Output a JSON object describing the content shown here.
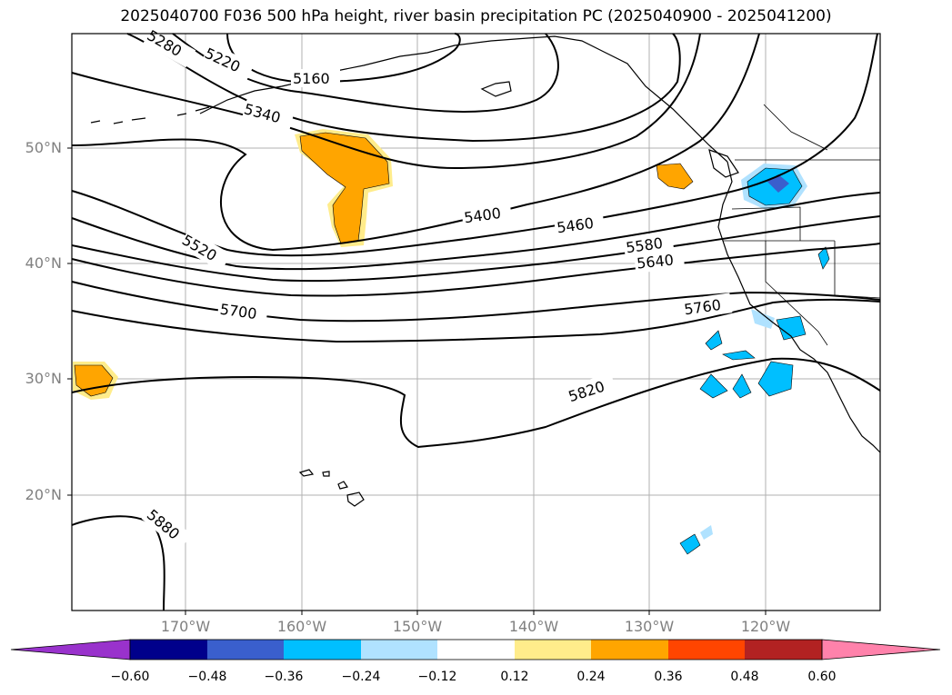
{
  "title": "2025040700 F036 500 hPa height, river basin precipitation PC (2025040900 - 2025041200)",
  "map": {
    "lon_range": [
      -180,
      -110
    ],
    "lat_range": [
      10,
      60
    ],
    "lat_ticks": [
      {
        "value": 50,
        "label": "50°N"
      },
      {
        "value": 40,
        "label": "40°N"
      },
      {
        "value": 30,
        "label": "30°N"
      },
      {
        "value": 20,
        "label": "20°N"
      }
    ],
    "lon_ticks": [
      {
        "value": -170,
        "label": "170°W"
      },
      {
        "value": -160,
        "label": "160°W"
      },
      {
        "value": -150,
        "label": "150°W"
      },
      {
        "value": -140,
        "label": "140°W"
      },
      {
        "value": -130,
        "label": "130°W"
      },
      {
        "value": -120,
        "label": "120°W"
      }
    ],
    "grid": true
  },
  "contours": [
    {
      "value": "5160",
      "label": "5160"
    },
    {
      "value": "5220",
      "label": "5220"
    },
    {
      "value": "5280",
      "label": "5280"
    },
    {
      "value": "5340",
      "label": "5340"
    },
    {
      "value": "5400",
      "label": "5400"
    },
    {
      "value": "5460",
      "label": "5460"
    },
    {
      "value": "5520",
      "label": "5520"
    },
    {
      "value": "5580",
      "label": "5580"
    },
    {
      "value": "5640",
      "label": "5640"
    },
    {
      "value": "5700",
      "label": "5700"
    },
    {
      "value": "5760",
      "label": "5760"
    },
    {
      "value": "5820",
      "label": "5820"
    },
    {
      "value": "5880",
      "label": "5880"
    }
  ],
  "colorbar": {
    "ticks": [
      "−0.60",
      "−0.48",
      "−0.36",
      "−0.24",
      "−0.12",
      "0.12",
      "0.24",
      "0.36",
      "0.48",
      "0.60"
    ],
    "colors": [
      "#9932CC",
      "#00008B",
      "#3A5FCD",
      "#00BFFF",
      "#B0E2FF",
      "#FFFFFF",
      "#FFEC8B",
      "#FFA500",
      "#FF4500",
      "#B22222",
      "#FF82AB"
    ]
  }
}
